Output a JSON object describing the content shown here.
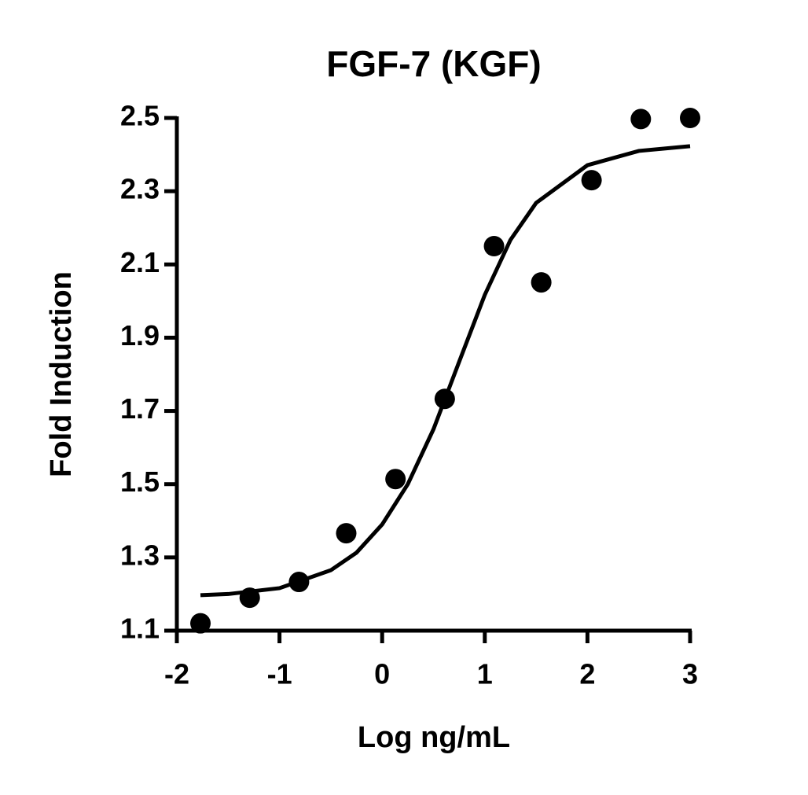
{
  "chart_data": {
    "type": "scatter",
    "title": "FGF-7 (KGF)",
    "x_label": "Log ng/mL",
    "y_label": "Fold Induction",
    "xlim": [
      -2,
      3
    ],
    "xticks": [
      -2,
      -1,
      0,
      1,
      2,
      3
    ],
    "ylim": [
      1.1,
      2.5
    ],
    "yticks": [
      1.1,
      1.3,
      1.5,
      1.7,
      1.9,
      2.1,
      2.3,
      2.5
    ],
    "series": [
      {
        "style": "points",
        "color": "#000000",
        "x": [
          -1.77,
          -1.29,
          -0.81,
          -0.35,
          0.13,
          0.61,
          1.09,
          1.55,
          2.04,
          2.52,
          3.0
        ],
        "values": [
          1.12,
          1.19,
          1.233,
          1.366,
          1.514,
          1.733,
          2.15,
          2.051,
          2.33,
          2.497,
          2.5
        ]
      },
      {
        "style": "line",
        "color": "#000000",
        "x": [
          -1.77,
          -1.5,
          -1.0,
          -0.5,
          -0.25,
          0,
          0.25,
          0.5,
          0.75,
          1.0,
          1.25,
          1.5,
          2.0,
          2.5,
          3.0
        ],
        "values": [
          1.197,
          1.2,
          1.216,
          1.265,
          1.313,
          1.39,
          1.5,
          1.65,
          1.834,
          2.017,
          2.167,
          2.268,
          2.371,
          2.41,
          2.423
        ]
      }
    ]
  }
}
